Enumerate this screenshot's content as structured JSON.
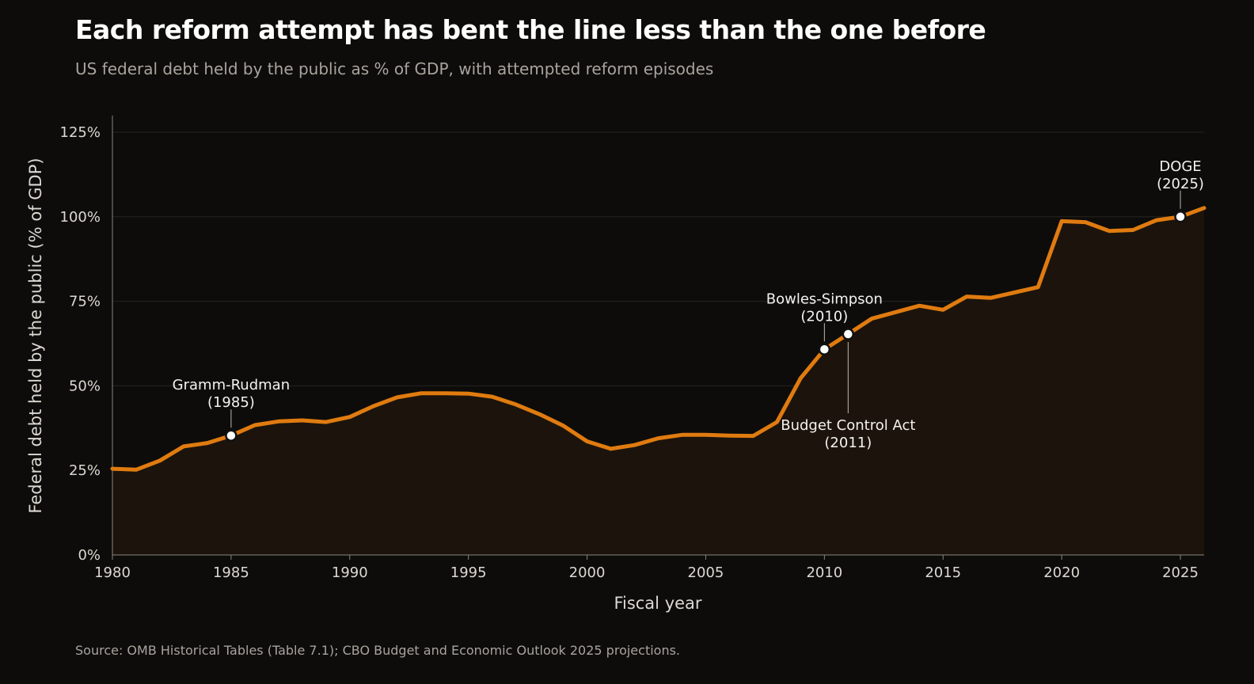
{
  "header": {
    "title": "Each reform attempt has bent the line less than the one before",
    "subtitle": "US federal debt held by the public as % of GDP, with attempted reform episodes"
  },
  "footer": {
    "source": "Source: OMB Historical Tables (Table 7.1); CBO Budget and Economic Outlook 2025 projections."
  },
  "colors": {
    "line": "#e07b10",
    "area": "#1c140c",
    "background": "#0d0c0a",
    "grid": "#262420",
    "axis": "#8a8680",
    "marker_fill": "#ffffff",
    "marker_stroke": "#111111"
  },
  "chart_data": {
    "type": "area",
    "xlabel": "Fiscal year",
    "ylabel": "Federal debt held by the public (% of GDP)",
    "xlim": [
      1980,
      2026
    ],
    "ylim": [
      0,
      125
    ],
    "x_ticks": [
      1980,
      1985,
      1990,
      1995,
      2000,
      2005,
      2010,
      2015,
      2020,
      2025
    ],
    "x_tick_labels": [
      "1980",
      "1985",
      "1990",
      "1995",
      "2000",
      "2005",
      "2010",
      "2015",
      "2020",
      "2025"
    ],
    "y_ticks": [
      0,
      25,
      50,
      75,
      100,
      125
    ],
    "y_tick_labels": [
      "0%",
      "25%",
      "50%",
      "75%",
      "100%",
      "125%"
    ],
    "grid": true,
    "series": [
      {
        "x": [
          1980,
          1981,
          1982,
          1983,
          1984,
          1985,
          1986,
          1987,
          1988,
          1989,
          1990,
          1991,
          1992,
          1993,
          1994,
          1995,
          1996,
          1997,
          1998,
          1999,
          2000,
          2001,
          2002,
          2003,
          2004,
          2005,
          2006,
          2007,
          2008,
          2009,
          2010,
          2011,
          2012,
          2013,
          2014,
          2015,
          2016,
          2017,
          2018,
          2019,
          2020,
          2021,
          2022,
          2023,
          2024,
          2025,
          2026
        ],
        "values": [
          25.5,
          25.2,
          27.9,
          32.1,
          33.1,
          35.3,
          38.4,
          39.5,
          39.8,
          39.3,
          40.8,
          44.0,
          46.6,
          47.8,
          47.8,
          47.7,
          46.8,
          44.5,
          41.6,
          38.2,
          33.6,
          31.4,
          32.5,
          34.5,
          35.5,
          35.5,
          35.3,
          35.2,
          39.3,
          52.3,
          60.8,
          65.3,
          69.9,
          71.8,
          73.7,
          72.5,
          76.4,
          76.0,
          77.6,
          79.2,
          98.7,
          98.4,
          95.8,
          96.1,
          99.0,
          100.0,
          102.6
        ]
      }
    ],
    "annotations": [
      {
        "label": "Gramm-Rudman",
        "sublabel": "(1985)",
        "x": 1985,
        "y": 35.3,
        "position": "above"
      },
      {
        "label": "Bowles-Simpson",
        "sublabel": "(2010)",
        "x": 2010,
        "y": 60.8,
        "position": "above"
      },
      {
        "label": "Budget Control Act",
        "sublabel": "(2011)",
        "x": 2011,
        "y": 65.3,
        "position": "below"
      },
      {
        "label": "DOGE",
        "sublabel": "(2025)",
        "x": 2025,
        "y": 100.0,
        "position": "above"
      }
    ]
  }
}
